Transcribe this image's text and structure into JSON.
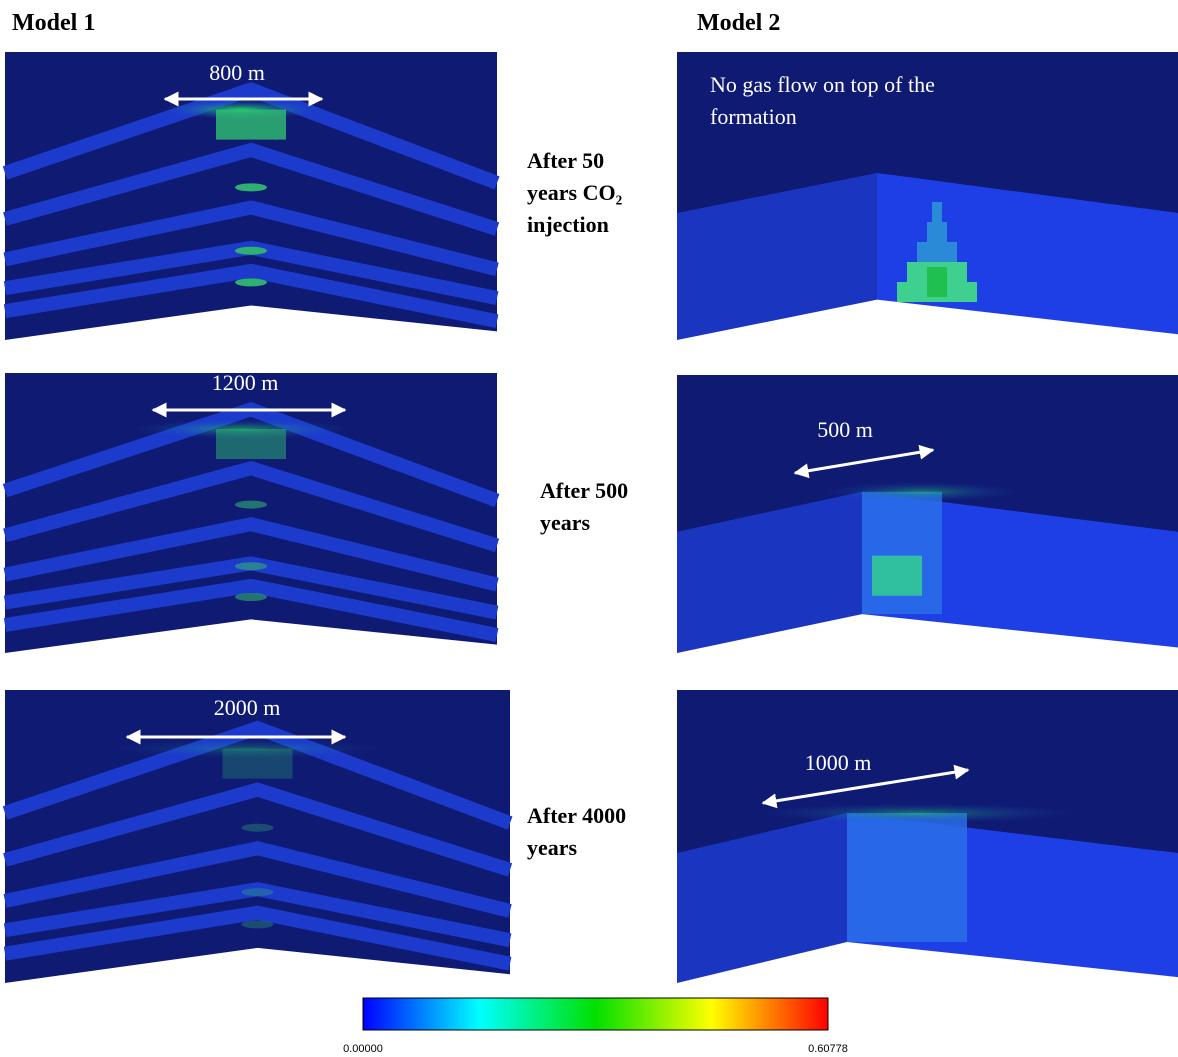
{
  "headers": {
    "model_1": "Model 1",
    "model_2": "Model 2"
  },
  "rows": [
    {
      "label": [
        "After 50",
        "years CO₂",
        "injection"
      ],
      "model_1_annotation": "800 m",
      "model_2_annotation": [
        "No gas flow on top of the",
        "formation"
      ]
    },
    {
      "label": [
        "After 500",
        "years"
      ],
      "model_1_annotation": "1200 m",
      "model_2_annotation": [
        "500 m"
      ]
    },
    {
      "label": [
        "After 4000",
        "years"
      ],
      "model_1_annotation": "2000 m",
      "model_2_annotation": [
        "1000 m"
      ]
    }
  ],
  "colorbar": {
    "min_label": "0.00000",
    "max_label": "0.60778"
  }
}
